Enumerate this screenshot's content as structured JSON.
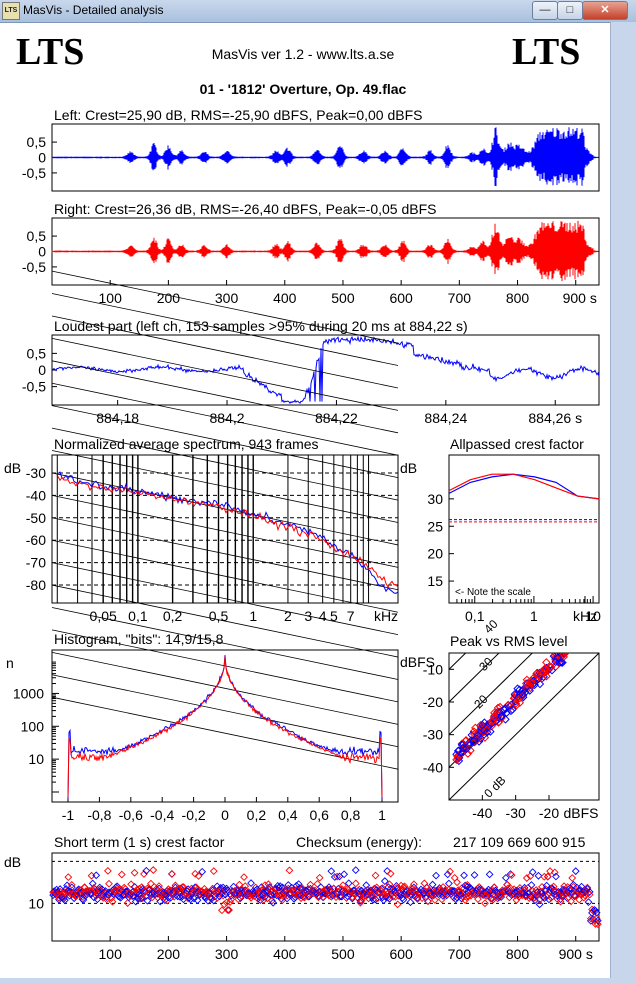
{
  "window": {
    "title": "MasVis - Detailed analysis",
    "icon": "LTS",
    "minimize_icon": "minimize-icon",
    "maximize_icon": "maximize-icon",
    "close_icon": "close-icon",
    "min_glyph": "—",
    "max_glyph": "□",
    "close_glyph": "✕"
  },
  "header": {
    "logo_left": "LTS",
    "logo_right": "LTS",
    "version": "MasVis ver 1.2 - www.lts.a.se",
    "file": "01 - '1812' Overture, Op. 49.flac"
  },
  "colors": {
    "left": "#0000ff",
    "right": "#ff0000",
    "grid": "#000000"
  },
  "chart_data": [
    {
      "type": "line",
      "name": "left-waveform",
      "title": "Left: Crest=25,90 dB, RMS=-25,90 dBFS, Peak=0,00 dBFS",
      "yticks": [
        "0,5",
        "0",
        "-0,5"
      ],
      "ylim": [
        -1,
        1
      ],
      "xlim": [
        0,
        940
      ],
      "color": "#0000ff"
    },
    {
      "type": "line",
      "name": "right-waveform",
      "title": "Right: Crest=26,36 dB, RMS=-26,40 dBFS, Peak=-0,05 dBFS",
      "yticks": [
        "0,5",
        "0",
        "-0,5"
      ],
      "ylim": [
        -1,
        1
      ],
      "xlim": [
        0,
        940
      ],
      "xticks": [
        "100",
        "200",
        "300",
        "400",
        "500",
        "600",
        "700",
        "800",
        "900 s"
      ],
      "color": "#ff0000"
    },
    {
      "type": "line",
      "name": "loudest-part",
      "title": "Loudest part (left  ch, 153 samples >95% during 20 ms at 884,22 s)",
      "yticks": [
        "0,5",
        "0",
        "-0,5"
      ],
      "xticks": [
        "884,18",
        "884,2",
        "884,22",
        "884,24",
        "884,26 s"
      ],
      "xlim": [
        884.168,
        884.268
      ]
    },
    {
      "type": "line",
      "name": "spectrum",
      "title": "Normalized average spectrum, 943 frames",
      "ylabel": "dB",
      "yticks": [
        "-30",
        "-40",
        "-50",
        "-60",
        "-70",
        "-80"
      ],
      "ylim": [
        -88,
        -22
      ],
      "xticks": [
        "0,05",
        "0,1",
        "0,2",
        "0,5",
        "1",
        "2",
        "3",
        "4",
        "5",
        "7",
        "kHz"
      ],
      "series": [
        {
          "name": "left",
          "points": [
            [
              0.02,
              -31
            ],
            [
              0.03,
              -34
            ],
            [
              0.05,
              -36
            ],
            [
              0.1,
              -38
            ],
            [
              0.2,
              -41
            ],
            [
              0.5,
              -44
            ],
            [
              1,
              -48
            ],
            [
              2,
              -53
            ],
            [
              3,
              -56
            ],
            [
              5,
              -62
            ],
            [
              7,
              -66
            ],
            [
              10,
              -74
            ],
            [
              15,
              -83
            ]
          ]
        },
        {
          "name": "right",
          "points": [
            [
              0.02,
              -32
            ],
            [
              0.03,
              -35
            ],
            [
              0.05,
              -37
            ],
            [
              0.1,
              -39
            ],
            [
              0.2,
              -42
            ],
            [
              0.5,
              -45
            ],
            [
              1,
              -49
            ],
            [
              2,
              -54
            ],
            [
              3,
              -57
            ],
            [
              5,
              -63
            ],
            [
              7,
              -67
            ],
            [
              10,
              -72
            ],
            [
              15,
              -80
            ]
          ]
        }
      ]
    },
    {
      "type": "line",
      "name": "allpassed-crest",
      "title": "Allpassed crest factor",
      "ylabel": "dB",
      "yticks": [
        "30",
        "25",
        "20",
        "15"
      ],
      "ylim": [
        11,
        38
      ],
      "xticks": [
        "0,1",
        "1",
        "10",
        "kHz"
      ],
      "note": "<- Note the scale",
      "series": [
        {
          "name": "left",
          "values": [
            31,
            33,
            34,
            34.5,
            34,
            33,
            30.5,
            30
          ]
        },
        {
          "name": "right",
          "values": [
            31.5,
            33.5,
            34.5,
            34.5,
            33.5,
            32,
            30.5,
            30
          ]
        }
      ],
      "ref_left": 26.2,
      "ref_right": 25.8
    },
    {
      "type": "line",
      "name": "histogram",
      "title": "Histogram, \"bits\": 14,9/15,8",
      "ylabel": "n",
      "yticks": [
        "1000",
        "100",
        "10"
      ],
      "xticks": [
        "-1",
        "-0,8",
        "-0,6",
        "-0,4",
        "-0,2",
        "0",
        "0,2",
        "0,4",
        "0,6",
        "0,8",
        "1"
      ],
      "xlim": [
        -1,
        1
      ]
    },
    {
      "type": "scatter",
      "name": "peak-vs-rms",
      "title": "Peak vs RMS level",
      "ylabel": "dBFS",
      "yticks": [
        "-10",
        "-20",
        "-30",
        "-40"
      ],
      "xticks": [
        "-40",
        "-30",
        "-20",
        "dBFS"
      ],
      "diag_labels": [
        "40",
        "30",
        "20",
        "10",
        "0 dB"
      ]
    },
    {
      "type": "scatter",
      "name": "short-term-crest",
      "title": "Short term (1 s) crest factor",
      "checksum_label": "Checksum (energy):",
      "checksum": "217 109 669 600 915",
      "ylabel": "dB",
      "yticks": [
        "10"
      ],
      "xticks": [
        "100",
        "200",
        "300",
        "400",
        "500",
        "600",
        "700",
        "800",
        "900 s"
      ],
      "xlim": [
        0,
        940
      ]
    }
  ]
}
